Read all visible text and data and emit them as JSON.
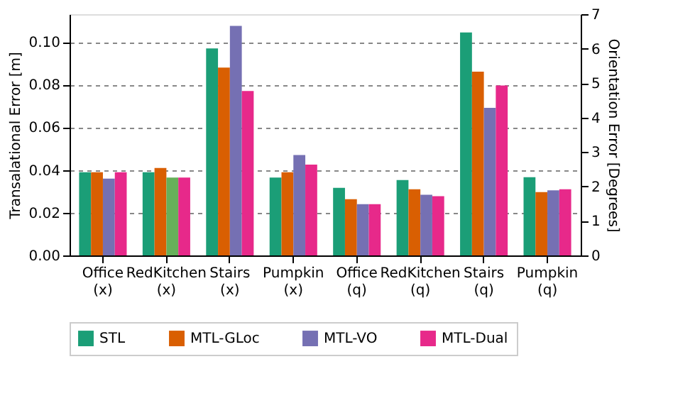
{
  "chart_data": {
    "type": "bar",
    "ylabel": "Transalational Error [m]",
    "y2label": "Orientation Error [Degrees]",
    "categories": [
      "Office (x)",
      "RedKitchen (x)",
      "Stairs (x)",
      "Pumpkin (x)",
      "Office (q)",
      "RedKitchen (q)",
      "Stairs (q)",
      "Pumpkin (q)"
    ],
    "series": [
      {
        "name": "STL",
        "color": "#1b9e77",
        "values": [
          0.039,
          0.039,
          0.097,
          0.0365,
          null,
          null,
          null,
          null
        ]
      },
      {
        "name": "MTL-GLoc",
        "color": "#d95f02",
        "values": [
          0.039,
          0.041,
          0.088,
          0.039,
          null,
          null,
          null,
          null
        ]
      },
      {
        "name": "MTL-VO",
        "color": "#7570b3",
        "colors": [
          "#7570b3",
          "#66b05a",
          "#7570b3",
          "#7570b3",
          null,
          null,
          null,
          null
        ],
        "values": [
          0.036,
          0.0365,
          0.1075,
          0.047,
          null,
          null,
          null,
          null
        ]
      },
      {
        "name": "MTL-Dual",
        "color": "#e7298a",
        "values": [
          0.039,
          0.0365,
          0.077,
          0.0425,
          null,
          null,
          null,
          null
        ]
      },
      {
        "color": "#1b9e77",
        "axis": "y2",
        "values": [
          null,
          null,
          null,
          null,
          1.96,
          2.19,
          6.47,
          2.27
        ]
      },
      {
        "color": "#d95f02",
        "axis": "y2",
        "values": [
          null,
          null,
          null,
          null,
          1.63,
          1.92,
          5.33,
          1.84
        ]
      },
      {
        "color": "#7570b3",
        "axis": "y2",
        "values": [
          null,
          null,
          null,
          null,
          1.49,
          1.76,
          4.28,
          1.89
        ]
      },
      {
        "color": "#e7298a",
        "axis": "y2",
        "values": [
          null,
          null,
          null,
          null,
          1.49,
          1.72,
          4.93,
          1.92
        ]
      }
    ],
    "ylim": [
      0,
      0.113
    ],
    "yticks": [
      {
        "value": 0,
        "label": "0.00"
      },
      {
        "value": 0.02,
        "label": "0.02"
      },
      {
        "value": 0.04,
        "label": "0.04"
      },
      {
        "value": 0.06,
        "label": "0.06"
      },
      {
        "value": 0.08,
        "label": "0.08"
      },
      {
        "value": 0.1,
        "label": "0.10"
      }
    ],
    "y2lim": [
      0,
      7
    ],
    "y2ticks": [
      0,
      1,
      2,
      3,
      4,
      5,
      6,
      7
    ],
    "grid": "y",
    "legend": "bottom"
  }
}
